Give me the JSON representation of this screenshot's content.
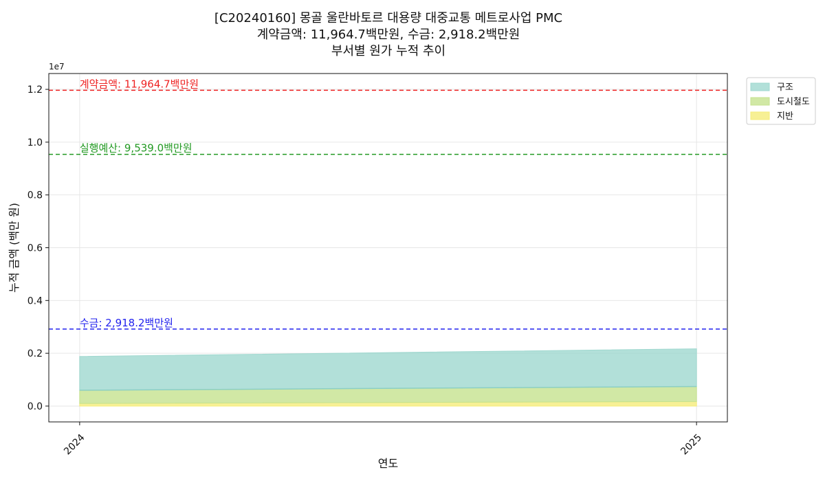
{
  "chart_data": {
    "type": "area",
    "stacked": true,
    "title_lines": [
      "[C20240160] 몽골 울란바토르 대용량 대중교통 메트로사업 PMC",
      "계약금액: 11,964.7백만원, 수금: 2,918.2백만원",
      "부서별 원가 누적 추이"
    ],
    "xlabel": "연도",
    "ylabel": "누적 금액 (백만 원)",
    "y_offset_text": "1e7",
    "x": [
      "2024",
      "2025"
    ],
    "xlim": [
      2023.95,
      2025.05
    ],
    "ylim": [
      -600000,
      12600000
    ],
    "y_ticks": [
      0,
      2000000,
      4000000,
      6000000,
      8000000,
      10000000,
      12000000
    ],
    "y_tick_labels": [
      "0.0",
      "0.2",
      "0.4",
      "0.6",
      "0.8",
      "1.0",
      "1.2"
    ],
    "grid": true,
    "legend_position": "outside top-right",
    "series": [
      {
        "name": "지반",
        "values": [
          100000,
          170000
        ],
        "color": "#f5ec7a"
      },
      {
        "name": "도시철도",
        "values": [
          500000,
          570000
        ],
        "color": "#c5e28e"
      },
      {
        "name": "구조",
        "values": [
          1280000,
          1430000
        ],
        "color": "#9fd8cf"
      }
    ],
    "internal_lines": [
      {
        "values": [
          600000,
          740000
        ],
        "color": "#8ccfc4"
      }
    ],
    "reference_lines": [
      {
        "label": "계약금액: 11,964.7백만원",
        "value": 11964700,
        "color": "#ee2222"
      },
      {
        "label": "실행예산: 9,539.0백만원",
        "value": 9539000,
        "color": "#229922"
      },
      {
        "label": "수금: 2,918.2백만원",
        "value": 2918200,
        "color": "#2222ee"
      }
    ],
    "legend": [
      {
        "name": "구조",
        "color": "#9fd8cf"
      },
      {
        "name": "도시철도",
        "color": "#c5e28e"
      },
      {
        "name": "지반",
        "color": "#f5ec7a"
      }
    ]
  }
}
